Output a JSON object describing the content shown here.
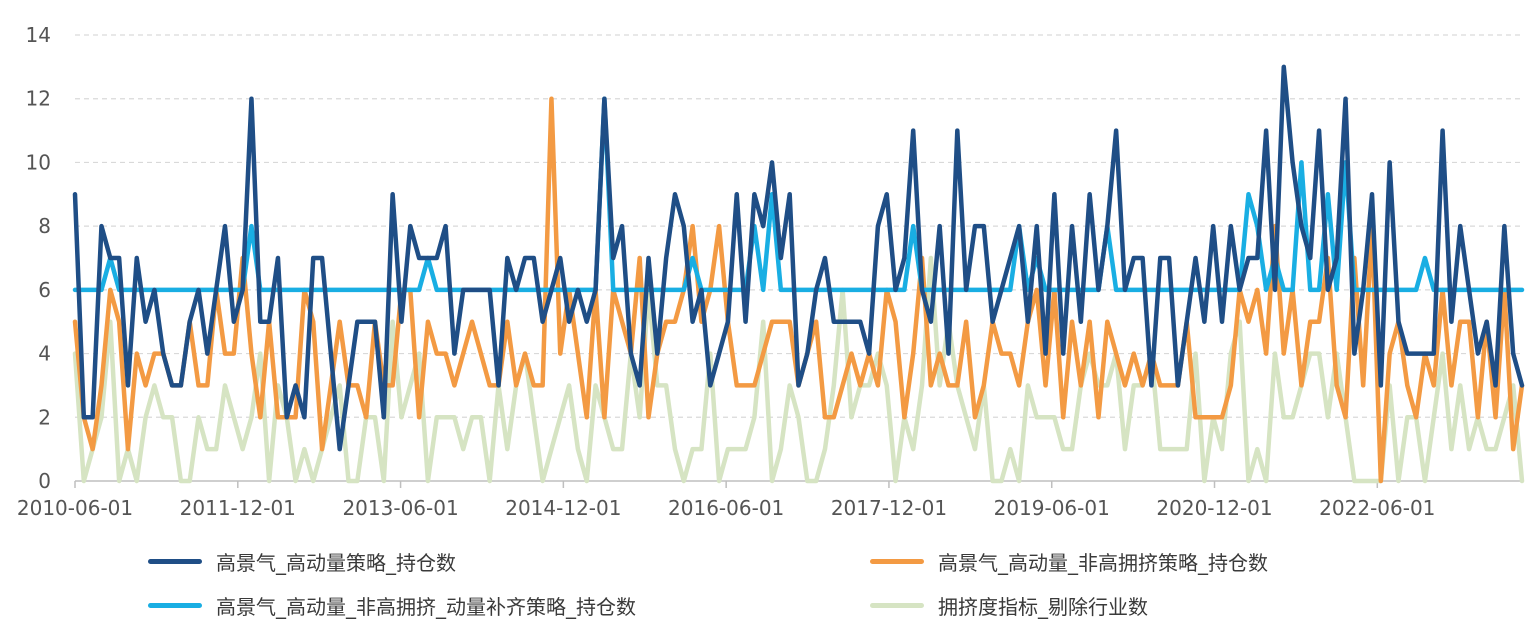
{
  "chart_data": {
    "type": "line",
    "ylim": [
      0,
      14
    ],
    "yticks": [
      0,
      2,
      4,
      6,
      8,
      10,
      12,
      14
    ],
    "xtick_labels": [
      "2010-06-01",
      "2011-12-01",
      "2013-06-01",
      "2014-12-01",
      "2016-06-01",
      "2017-12-01",
      "2019-06-01",
      "2020-12-01",
      "2022-06-01"
    ],
    "x_start": "2010-06",
    "x_end": "2023-10",
    "grid": "horizontal dashed",
    "legend_position": "bottom",
    "series": [
      {
        "name": "高景气_高动量策略_持仓数",
        "color": "#1f4e86",
        "values": [
          9,
          2,
          2,
          8,
          7,
          7,
          3,
          7,
          5,
          6,
          4,
          3,
          3,
          5,
          6,
          4,
          6,
          8,
          5,
          6,
          12,
          5,
          5,
          7,
          2,
          3,
          2,
          7,
          7,
          4,
          1,
          3,
          5,
          5,
          5,
          2,
          9,
          5,
          8,
          7,
          7,
          7,
          8,
          4,
          6,
          6,
          6,
          6,
          3,
          7,
          6,
          7,
          7,
          5,
          6,
          7,
          5,
          6,
          5,
          6,
          12,
          7,
          8,
          4,
          3,
          7,
          4,
          7,
          9,
          8,
          5,
          6,
          3,
          4,
          5,
          9,
          5,
          9,
          8,
          10,
          7,
          9,
          3,
          4,
          6,
          7,
          5,
          5,
          5,
          5,
          4,
          8,
          9,
          6,
          7,
          11,
          6,
          5,
          8,
          4,
          11,
          6,
          8,
          8,
          5,
          6,
          7,
          8,
          5,
          8,
          4,
          9,
          4,
          8,
          5,
          9,
          6,
          8,
          11,
          6,
          7,
          7,
          3,
          7,
          7,
          3,
          5,
          7,
          5,
          8,
          5,
          8,
          6,
          7,
          7,
          11,
          6,
          13,
          10,
          8,
          7,
          11,
          6,
          7,
          12,
          4,
          6,
          9,
          3,
          10,
          5,
          4,
          4,
          4,
          4,
          11,
          5,
          8,
          6,
          4,
          5,
          3,
          8,
          4,
          3
        ]
      },
      {
        "name": "高景气_高动量_非高拥挤策略_持仓数",
        "color": "#f39a43",
        "values": [
          5,
          2,
          1,
          3,
          6,
          5,
          1,
          4,
          3,
          4,
          4,
          3,
          3,
          5,
          3,
          3,
          6,
          4,
          4,
          7,
          4,
          2,
          5,
          2,
          2,
          2,
          6,
          5,
          1,
          3,
          5,
          3,
          3,
          2,
          5,
          3,
          3,
          6,
          6,
          2,
          5,
          4,
          4,
          3,
          4,
          5,
          4,
          3,
          3,
          5,
          3,
          4,
          3,
          3,
          12,
          4,
          6,
          4,
          2,
          6,
          2,
          6,
          5,
          4,
          7,
          2,
          4,
          5,
          5,
          6,
          8,
          5,
          6,
          8,
          5,
          3,
          3,
          3,
          4,
          5,
          5,
          5,
          3,
          4,
          5,
          2,
          2,
          3,
          4,
          3,
          4,
          3,
          6,
          5,
          2,
          4,
          7,
          3,
          4,
          3,
          3,
          5,
          2,
          3,
          5,
          4,
          4,
          3,
          5,
          6,
          3,
          6,
          2,
          5,
          3,
          5,
          2,
          5,
          4,
          3,
          4,
          3,
          4,
          3,
          3,
          3,
          5,
          2,
          2,
          2,
          2,
          3,
          6,
          5,
          6,
          4,
          8,
          4,
          6,
          3,
          5,
          5,
          7,
          3,
          2,
          7,
          3,
          8,
          0,
          4,
          5,
          3,
          2,
          4,
          3,
          6,
          3,
          5,
          5,
          2,
          5,
          2,
          6,
          1,
          3
        ]
      },
      {
        "name": "高景气_高动量_非高拥挤_动量补齐策略_持仓数",
        "color": "#19aee3",
        "values": [
          6,
          6,
          6,
          6,
          7,
          6,
          6,
          6,
          6,
          6,
          6,
          6,
          6,
          6,
          6,
          6,
          6,
          6,
          6,
          6,
          8,
          6,
          6,
          6,
          6,
          6,
          6,
          6,
          6,
          6,
          6,
          6,
          6,
          6,
          6,
          6,
          6,
          6,
          6,
          6,
          7,
          6,
          6,
          6,
          6,
          6,
          6,
          6,
          6,
          6,
          6,
          6,
          6,
          6,
          6,
          6,
          6,
          6,
          6,
          6,
          12,
          6,
          6,
          6,
          6,
          6,
          6,
          6,
          6,
          6,
          7,
          6,
          6,
          6,
          6,
          6,
          6,
          8,
          6,
          9,
          6,
          6,
          6,
          6,
          6,
          6,
          6,
          6,
          6,
          6,
          6,
          6,
          6,
          6,
          6,
          8,
          6,
          6,
          6,
          6,
          6,
          6,
          6,
          6,
          6,
          6,
          6,
          8,
          6,
          7,
          6,
          6,
          6,
          6,
          6,
          6,
          6,
          8,
          6,
          6,
          6,
          6,
          6,
          6,
          6,
          6,
          6,
          6,
          6,
          6,
          6,
          6,
          6,
          9,
          8,
          6,
          7,
          6,
          6,
          10,
          6,
          6,
          9,
          6,
          10,
          6,
          6,
          6,
          6,
          6,
          6,
          6,
          6,
          7,
          6,
          6,
          6,
          6,
          6,
          6,
          6,
          6,
          6,
          6,
          6
        ]
      },
      {
        "name": "拥挤度指标_剔除行业数",
        "color": "#d6e4c3",
        "values": [
          4,
          0,
          1,
          2,
          5,
          0,
          1,
          0,
          2,
          3,
          2,
          2,
          0,
          0,
          2,
          1,
          1,
          3,
          2,
          1,
          2,
          4,
          0,
          3,
          2,
          0,
          1,
          0,
          1,
          2,
          3,
          0,
          0,
          2,
          2,
          0,
          5,
          2,
          3,
          4,
          0,
          2,
          2,
          2,
          1,
          2,
          2,
          0,
          3,
          1,
          3,
          4,
          2,
          0,
          1,
          2,
          3,
          1,
          0,
          3,
          2,
          1,
          1,
          4,
          2,
          6,
          3,
          3,
          1,
          0,
          1,
          1,
          4,
          0,
          1,
          1,
          1,
          2,
          5,
          0,
          1,
          3,
          2,
          0,
          0,
          1,
          3,
          6,
          2,
          3,
          3,
          4,
          3,
          0,
          2,
          1,
          3,
          7,
          3,
          5,
          3,
          2,
          1,
          3,
          0,
          0,
          1,
          0,
          3,
          2,
          2,
          2,
          1,
          1,
          3,
          4,
          3,
          3,
          4,
          1,
          3,
          3,
          4,
          1,
          1,
          1,
          1,
          4,
          0,
          2,
          1,
          4,
          5,
          0,
          1,
          0,
          4,
          2,
          2,
          3,
          4,
          4,
          2,
          4,
          2,
          0,
          0,
          0,
          0,
          3,
          0,
          2,
          2,
          0,
          2,
          4,
          1,
          3,
          1,
          2,
          1,
          1,
          2,
          3,
          0
        ]
      }
    ]
  }
}
